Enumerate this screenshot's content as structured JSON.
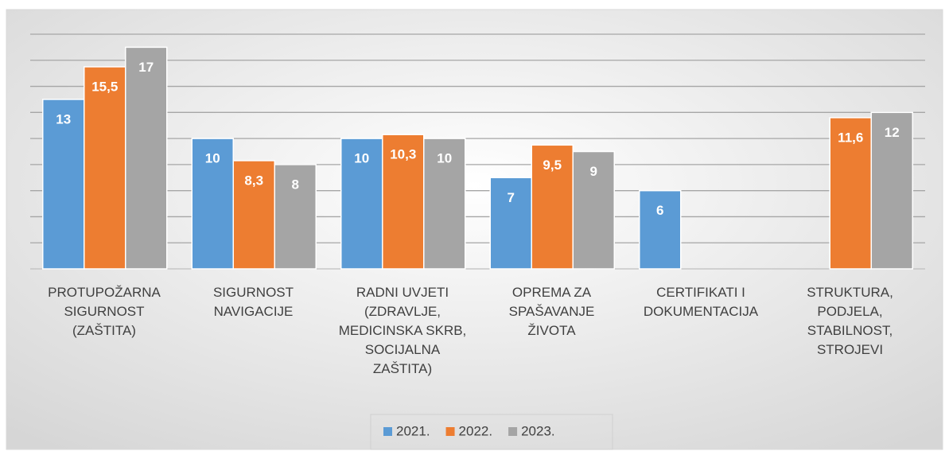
{
  "chart_data": {
    "type": "bar",
    "categories": [
      "PROTUPOŽARNA\nSIGURNOST\n(ZAŠTITA)",
      "SIGURNOST\nNAVIGACIJE",
      "RADNI UVJETI\n(ZDRAVLJE,\nMEDICINSKA SKRB,\nSOCIJALNA\nZAŠTITA)",
      "OPREMA ZA\nSPAŠAVANJE\nŽIVOTA",
      "CERTIFIKATI I\nDOKUMENTACIJA",
      "STRUKTURA,\nPODJELA,\nSTABILNOST,\nSTROJEVI"
    ],
    "series": [
      {
        "name": "2021.",
        "color": "#5b9bd5",
        "values": [
          13,
          10,
          10,
          7,
          6,
          null
        ]
      },
      {
        "name": "2022.",
        "color": "#ed7d31",
        "values": [
          15.5,
          8.3,
          10.3,
          9.5,
          null,
          11.6
        ],
        "value_labels": [
          "15,5",
          "8,3",
          "10,3",
          "9,5",
          null,
          "11,6"
        ]
      },
      {
        "name": "2023.",
        "color": "#a5a5a5",
        "values": [
          17,
          8,
          10,
          9,
          null,
          12
        ]
      }
    ],
    "ylim": [
      0,
      18
    ],
    "yticks": [
      0,
      2,
      4,
      6,
      8,
      10,
      12,
      14,
      16,
      18
    ],
    "grid": true,
    "legend": "bottom"
  }
}
